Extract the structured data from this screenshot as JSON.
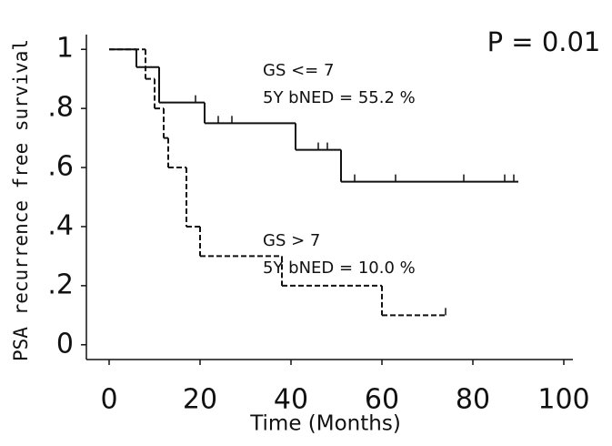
{
  "chart_data": {
    "type": "km",
    "x_label": "Time (Months)",
    "y_label": "PSA recurrence free survival",
    "p_value": "P = 0.01",
    "xlim": [
      -5,
      102
    ],
    "ylim": [
      -0.05,
      1.05
    ],
    "xticks": [
      0,
      20,
      40,
      60,
      80,
      100
    ],
    "yticks": [
      0,
      {
        "value": 0.2,
        "label": ".2"
      },
      {
        "value": 0.4,
        "label": ".4"
      },
      {
        "value": 0.6,
        "label": ".6"
      },
      {
        "value": 0.8,
        "label": ".8"
      },
      1
    ],
    "series": [
      {
        "name": "GS <= 7",
        "annotation": "5Y bNED = 55.2 %",
        "color": "#111111",
        "dashed": false,
        "x": [
          0,
          6,
          11,
          21,
          41,
          51,
          90
        ],
        "values": [
          1,
          0.94,
          0.82,
          0.75,
          0.66,
          0.552,
          0.552
        ],
        "censor": [
          19,
          24,
          27,
          46,
          48,
          54,
          63,
          78,
          87,
          89
        ]
      },
      {
        "name": "GS > 7",
        "annotation": "5Y bNED = 10.0 %",
        "color": "#111111",
        "dashed": true,
        "x": [
          0,
          8,
          10,
          12,
          13,
          17,
          20,
          38,
          60,
          74
        ],
        "values": [
          1,
          0.9,
          0.8,
          0.7,
          0.6,
          0.4,
          0.3,
          0.2,
          0.1,
          0.1
        ],
        "censor": [
          74
        ]
      }
    ]
  }
}
